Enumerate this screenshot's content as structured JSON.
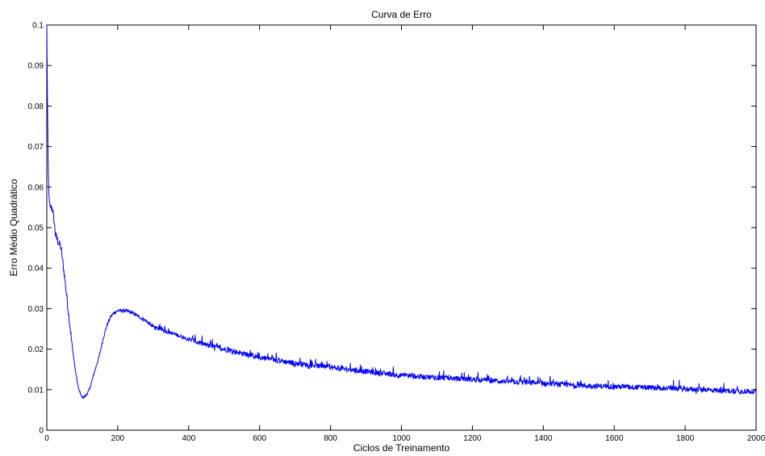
{
  "chart_data": {
    "type": "line",
    "title": "Curva de Erro",
    "xlabel": "Ciclos de Treinamento",
    "ylabel": "Erro Médio Quadrático",
    "xlim": [
      0,
      2000
    ],
    "ylim": [
      0,
      0.1
    ],
    "xticks": [
      0,
      200,
      400,
      600,
      800,
      1000,
      1200,
      1400,
      1600,
      1800,
      2000
    ],
    "yticks": [
      0,
      0.01,
      0.02,
      0.03,
      0.04,
      0.05,
      0.06,
      0.07,
      0.08,
      0.09,
      0.1
    ],
    "xtick_labels": [
      "0",
      "200",
      "400",
      "600",
      "800",
      "1000",
      "1200",
      "1400",
      "1600",
      "1800",
      "2000"
    ],
    "ytick_labels": [
      "0",
      "0.01",
      "0.02",
      "0.03",
      "0.04",
      "0.05",
      "0.06",
      "0.07",
      "0.08",
      "0.09",
      "0.1"
    ],
    "grid": false,
    "series_color": "#0000ff",
    "series": [
      {
        "x": [
          0,
          2,
          4,
          6,
          8,
          10,
          15,
          20,
          25,
          30,
          35,
          40,
          50,
          60,
          70,
          80,
          90,
          100,
          110,
          120,
          130,
          140,
          150,
          160,
          170,
          180,
          190,
          200,
          220,
          240,
          260,
          280,
          300,
          350,
          400,
          450,
          500,
          600,
          700,
          800,
          900,
          1000,
          1100,
          1200,
          1300,
          1400,
          1500,
          1600,
          1700,
          1800,
          1900,
          2000
        ],
        "y": [
          0.1,
          0.08,
          0.065,
          0.058,
          0.056,
          0.055,
          0.055,
          0.052,
          0.048,
          0.047,
          0.046,
          0.045,
          0.038,
          0.03,
          0.022,
          0.015,
          0.01,
          0.008,
          0.0085,
          0.01,
          0.013,
          0.016,
          0.019,
          0.023,
          0.026,
          0.028,
          0.029,
          0.0295,
          0.0295,
          0.029,
          0.028,
          0.027,
          0.0255,
          0.024,
          0.0225,
          0.021,
          0.02,
          0.018,
          0.0165,
          0.0155,
          0.0145,
          0.0135,
          0.013,
          0.0125,
          0.012,
          0.0115,
          0.011,
          0.0108,
          0.0105,
          0.0102,
          0.0098,
          0.0095
        ]
      }
    ]
  }
}
